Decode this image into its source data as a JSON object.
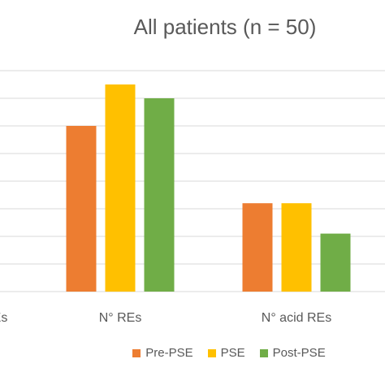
{
  "chart_data": {
    "type": "bar",
    "title": "All patients (n = 50)",
    "categories": [
      "Es",
      "N° REs",
      "N° acid REs"
    ],
    "series": [
      {
        "name": "Pre-PSE",
        "color": "#ED7D31",
        "values": [
          null,
          60,
          32
        ]
      },
      {
        "name": "PSE",
        "color": "#FFC000",
        "values": [
          null,
          75,
          32
        ]
      },
      {
        "name": "Post-PSE",
        "color": "#70AD47",
        "values": [
          null,
          70,
          21
        ]
      }
    ],
    "ylim": [
      0,
      80
    ],
    "grid": true,
    "legend_position": "bottom"
  }
}
